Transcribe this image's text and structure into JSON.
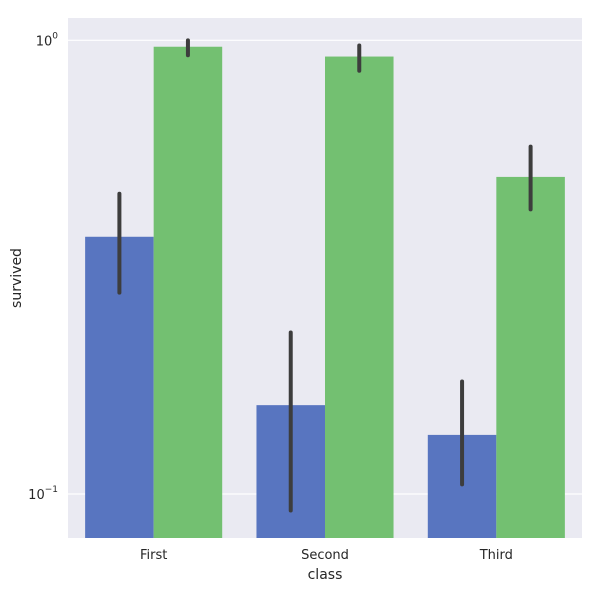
{
  "chart_data": {
    "type": "bar",
    "title": "",
    "xlabel": "class",
    "ylabel": "survived",
    "yscale": "log",
    "ylim": [
      0.08,
      1.12
    ],
    "y_ticks": [
      {
        "value": 1.0,
        "base": "10",
        "exponent": "0"
      },
      {
        "value": 0.1,
        "base": "10",
        "exponent": "−1"
      }
    ],
    "grid": true,
    "categories": [
      "First",
      "Second",
      "Third"
    ],
    "series": [
      {
        "color": "#5875c0",
        "values": [
          0.369,
          0.157,
          0.135
        ],
        "ci_low": [
          0.278,
          0.092,
          0.105
        ],
        "ci_high": [
          0.459,
          0.227,
          0.177
        ]
      },
      {
        "color": "#73c071",
        "values": [
          0.968,
          0.921,
          0.5
        ],
        "ci_low": [
          0.927,
          0.857,
          0.424
        ],
        "ci_high": [
          1.0,
          0.974,
          0.583
        ]
      }
    ],
    "background_color": "#eaeaf2",
    "errorbar_color": "#3d3d3d"
  }
}
